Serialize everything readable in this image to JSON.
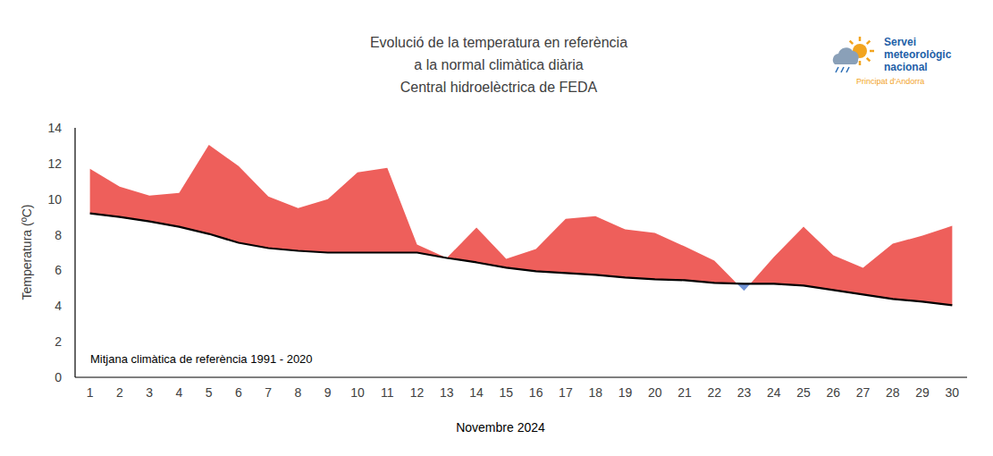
{
  "chart_data": {
    "type": "area",
    "title": [
      "Evolució de la temperatura en referència",
      "a la normal climàtica diària"
    ],
    "subtitle": "Central hidroelèctrica de FEDA",
    "x_label": "Novembre 2024",
    "y_label": "Temperatura (ºC)",
    "annotations": [
      "Mitjana climàtica de referència 1991 - 2020"
    ],
    "categories": [
      "1",
      "2",
      "3",
      "4",
      "5",
      "6",
      "7",
      "8",
      "9",
      "10",
      "11",
      "12",
      "13",
      "14",
      "15",
      "16",
      "17",
      "18",
      "19",
      "20",
      "21",
      "22",
      "23",
      "24",
      "25",
      "26",
      "27",
      "28",
      "29",
      "30"
    ],
    "series": [
      {
        "type": "area",
        "colors": [
          "#ee5f5b",
          "#6f93d6"
        ],
        "values": [
          11.7,
          10.7,
          10.2,
          10.35,
          13.05,
          11.85,
          10.15,
          9.5,
          10.0,
          11.5,
          11.75,
          7.45,
          6.7,
          8.4,
          6.65,
          7.2,
          8.9,
          9.05,
          8.3,
          8.1,
          7.35,
          6.55,
          4.85,
          6.75,
          8.45,
          6.85,
          6.15,
          7.5,
          7.95,
          8.5
        ]
      },
      {
        "type": "line",
        "color": "#000000",
        "values": [
          9.2,
          9.0,
          8.75,
          8.45,
          8.05,
          7.55,
          7.25,
          7.1,
          7.0,
          7.0,
          7.0,
          7.0,
          6.7,
          6.45,
          6.15,
          5.95,
          5.85,
          5.75,
          5.6,
          5.5,
          5.45,
          5.3,
          5.25,
          5.25,
          5.15,
          4.9,
          4.65,
          4.4,
          4.25,
          4.05
        ]
      }
    ],
    "ylim": [
      0,
      14
    ],
    "yticks": [
      0,
      2,
      4,
      6,
      8,
      10,
      12,
      14
    ],
    "grid": false
  },
  "logo": {
    "lines": [
      "Servei",
      "meteorològic",
      "nacional"
    ],
    "subtitle": "Principat d'Andorra"
  }
}
